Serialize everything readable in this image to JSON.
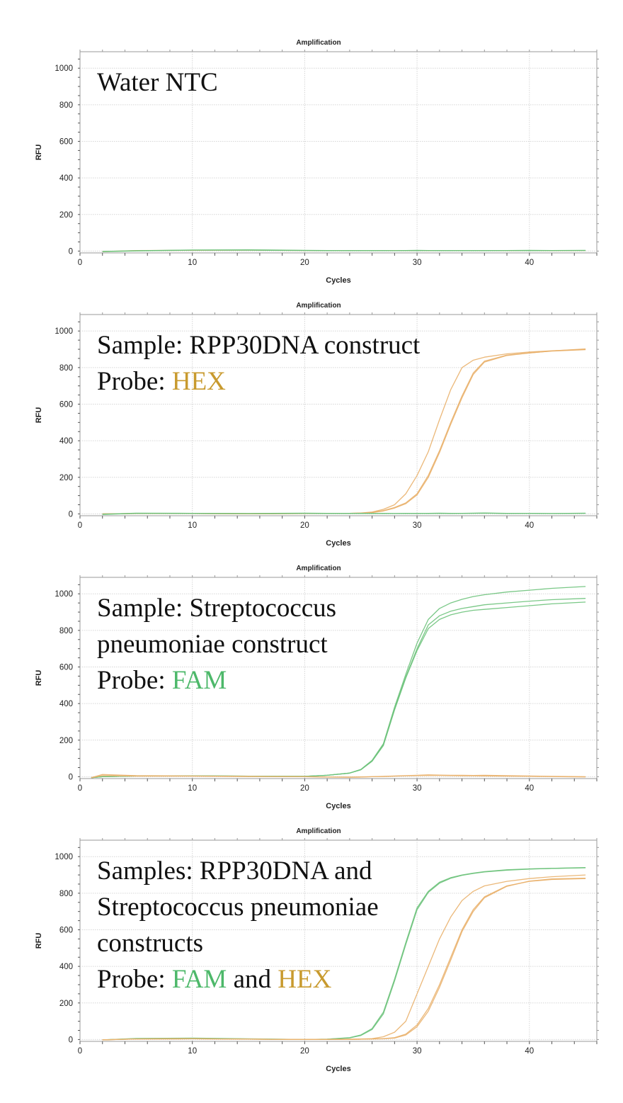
{
  "colors": {
    "fam": "#6cc27a",
    "hex": "#e9b06a",
    "fam_text": "#4db86a",
    "hex_text": "#c89a2e"
  },
  "chart_data": [
    {
      "type": "line",
      "title": "Amplification",
      "xlabel": "Cycles",
      "ylabel": "RFU",
      "xlim": [
        0,
        46
      ],
      "ylim": [
        -10,
        1090
      ],
      "xticks": [
        0,
        10,
        20,
        30,
        40
      ],
      "yticks": [
        0,
        200,
        400,
        600,
        800,
        1000
      ],
      "grid": true,
      "annotation": [
        [
          {
            "text": "Water NTC",
            "color": ""
          }
        ]
      ],
      "x": [
        2,
        5,
        10,
        15,
        20,
        22,
        24,
        25,
        26,
        27,
        28,
        29,
        30,
        31,
        32,
        33,
        34,
        35,
        36,
        38,
        40,
        42,
        45
      ],
      "series": [
        {
          "color": "hex",
          "values": [
            -3,
            3,
            4,
            5,
            3,
            2,
            3,
            2,
            2,
            3,
            3,
            2,
            3,
            2,
            3,
            2,
            3,
            2,
            3,
            2,
            3,
            2,
            3
          ]
        },
        {
          "color": "fam",
          "values": [
            -2,
            2,
            6,
            7,
            4,
            3,
            2,
            3,
            2,
            3,
            2,
            3,
            4,
            3,
            2,
            3,
            2,
            3,
            2,
            3,
            4,
            3,
            4
          ]
        },
        {
          "color": "fam",
          "values": [
            -3,
            1,
            5,
            5,
            3,
            2,
            3,
            2,
            3,
            2,
            2,
            3,
            2,
            3,
            3,
            2,
            3,
            2,
            3,
            3,
            2,
            3,
            3
          ]
        }
      ]
    },
    {
      "type": "line",
      "title": "Amplification",
      "xlabel": "Cycles",
      "ylabel": "RFU",
      "xlim": [
        0,
        46
      ],
      "ylim": [
        -10,
        1090
      ],
      "xticks": [
        0,
        10,
        20,
        30,
        40
      ],
      "yticks": [
        0,
        200,
        400,
        600,
        800,
        1000
      ],
      "grid": true,
      "annotation": [
        [
          {
            "text": "Sample: RPP30DNA construct",
            "color": ""
          }
        ],
        [
          {
            "text": "Probe: ",
            "color": ""
          },
          {
            "text": "HEX",
            "color": "hex_text"
          }
        ]
      ],
      "x": [
        2,
        5,
        10,
        15,
        20,
        22,
        24,
        25,
        26,
        27,
        28,
        29,
        30,
        31,
        32,
        33,
        34,
        35,
        36,
        38,
        40,
        42,
        45
      ],
      "series": [
        {
          "color": "hex",
          "values": [
            0,
            2,
            2,
            1,
            2,
            2,
            3,
            5,
            10,
            25,
            50,
            110,
            210,
            340,
            515,
            680,
            800,
            840,
            857,
            875,
            885,
            892,
            900
          ]
        },
        {
          "color": "hex",
          "values": [
            0,
            2,
            2,
            1,
            2,
            2,
            3,
            4,
            8,
            18,
            35,
            60,
            110,
            210,
            345,
            500,
            645,
            770,
            835,
            868,
            880,
            890,
            898
          ]
        },
        {
          "color": "hex",
          "values": [
            0,
            2,
            2,
            1,
            2,
            2,
            3,
            4,
            7,
            16,
            32,
            56,
            104,
            200,
            335,
            490,
            635,
            762,
            830,
            866,
            880,
            891,
            902
          ]
        },
        {
          "color": "fam",
          "values": [
            -2,
            4,
            3,
            2,
            4,
            3,
            3,
            2,
            3,
            2,
            2,
            3,
            2,
            3,
            4,
            3,
            3,
            4,
            5,
            3,
            3,
            2,
            4
          ]
        },
        {
          "color": "fam",
          "values": [
            -3,
            3,
            3,
            2,
            3,
            2,
            2,
            3,
            2,
            3,
            2,
            2,
            3,
            2,
            3,
            2,
            3,
            3,
            4,
            2,
            3,
            2,
            3
          ]
        }
      ]
    },
    {
      "type": "line",
      "title": "Amplification",
      "xlabel": "Cycles",
      "ylabel": "RFU",
      "xlim": [
        0,
        46
      ],
      "ylim": [
        -10,
        1090
      ],
      "xticks": [
        0,
        10,
        20,
        30,
        40
      ],
      "yticks": [
        0,
        200,
        400,
        600,
        800,
        1000
      ],
      "grid": true,
      "annotation": [
        [
          {
            "text": "Sample: Streptococcus",
            "color": ""
          }
        ],
        [
          {
            "text": "pneumoniae construct",
            "color": ""
          }
        ],
        [
          {
            "text": "Probe: ",
            "color": ""
          },
          {
            "text": "FAM",
            "color": "fam_text"
          }
        ]
      ],
      "x": [
        1,
        2,
        5,
        10,
        15,
        20,
        22,
        24,
        25,
        26,
        27,
        28,
        29,
        30,
        31,
        32,
        33,
        34,
        35,
        36,
        38,
        40,
        42,
        45
      ],
      "series": [
        {
          "color": "fam",
          "values": [
            -5,
            0,
            4,
            5,
            3,
            2,
            8,
            20,
            40,
            90,
            180,
            380,
            560,
            730,
            860,
            920,
            950,
            970,
            985,
            995,
            1010,
            1020,
            1030,
            1040
          ]
        },
        {
          "color": "fam",
          "values": [
            -5,
            0,
            4,
            5,
            3,
            2,
            8,
            20,
            38,
            85,
            175,
            370,
            545,
            700,
            830,
            880,
            905,
            920,
            930,
            940,
            950,
            960,
            968,
            975
          ]
        },
        {
          "color": "fam",
          "values": [
            -5,
            0,
            4,
            5,
            3,
            2,
            8,
            20,
            38,
            85,
            170,
            365,
            540,
            690,
            810,
            860,
            885,
            900,
            910,
            915,
            925,
            935,
            945,
            955
          ]
        },
        {
          "color": "hex",
          "values": [
            -5,
            12,
            6,
            4,
            2,
            0,
            -2,
            -3,
            -2,
            0,
            2,
            4,
            6,
            8,
            10,
            9,
            8,
            8,
            7,
            8,
            6,
            4,
            2,
            0
          ]
        },
        {
          "color": "hex",
          "values": [
            -5,
            6,
            3,
            3,
            1,
            0,
            -2,
            -2,
            -1,
            0,
            1,
            3,
            5,
            6,
            7,
            7,
            6,
            5,
            5,
            4,
            3,
            2,
            1,
            -1
          ]
        }
      ]
    },
    {
      "type": "line",
      "title": "Amplification",
      "xlabel": "Cycles",
      "ylabel": "RFU",
      "xlim": [
        0,
        46
      ],
      "ylim": [
        -10,
        1090
      ],
      "xticks": [
        0,
        10,
        20,
        30,
        40
      ],
      "yticks": [
        0,
        200,
        400,
        600,
        800,
        1000
      ],
      "grid": true,
      "annotation": [
        [
          {
            "text": "Samples: RPP30DNA and",
            "color": ""
          }
        ],
        [
          {
            "text": "Streptococcus pneumoniae",
            "color": ""
          }
        ],
        [
          {
            "text": "constructs",
            "color": ""
          }
        ],
        [
          {
            "text": "Probe: ",
            "color": ""
          },
          {
            "text": "FAM",
            "color": "fam_text"
          },
          {
            "text": " and ",
            "color": ""
          },
          {
            "text": "HEX",
            "color": "hex_text"
          }
        ]
      ],
      "x": [
        2,
        5,
        10,
        15,
        20,
        22,
        24,
        25,
        26,
        27,
        28,
        29,
        30,
        31,
        32,
        33,
        34,
        35,
        36,
        38,
        40,
        42,
        45
      ],
      "series": [
        {
          "color": "fam",
          "values": [
            -2,
            6,
            8,
            4,
            0,
            2,
            10,
            25,
            60,
            150,
            330,
            530,
            720,
            810,
            860,
            885,
            900,
            910,
            918,
            928,
            933,
            936,
            940
          ]
        },
        {
          "color": "fam",
          "values": [
            -2,
            5,
            7,
            3,
            0,
            2,
            9,
            22,
            55,
            140,
            320,
            520,
            710,
            805,
            855,
            882,
            898,
            908,
            916,
            926,
            932,
            936,
            939
          ]
        },
        {
          "color": "hex",
          "values": [
            -2,
            3,
            4,
            2,
            0,
            1,
            2,
            3,
            5,
            15,
            40,
            100,
            250,
            400,
            550,
            670,
            760,
            810,
            840,
            865,
            880,
            890,
            900
          ]
        },
        {
          "color": "hex",
          "values": [
            -2,
            3,
            4,
            2,
            0,
            1,
            1,
            2,
            3,
            5,
            10,
            30,
            80,
            170,
            300,
            450,
            600,
            710,
            780,
            840,
            865,
            875,
            880
          ]
        },
        {
          "color": "hex",
          "values": [
            -2,
            3,
            4,
            2,
            0,
            1,
            1,
            2,
            3,
            4,
            8,
            25,
            70,
            155,
            285,
            435,
            590,
            700,
            775,
            838,
            866,
            878,
            882
          ]
        }
      ]
    }
  ]
}
